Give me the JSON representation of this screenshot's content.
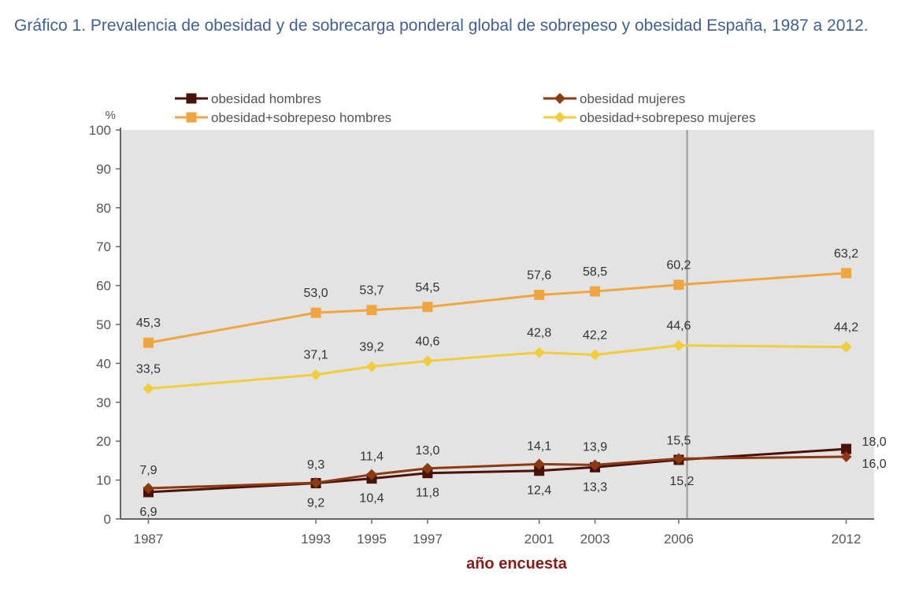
{
  "caption": "Gráfico 1. Prevalencia de obesidad y de sobrecarga ponderal global de sobrepeso y obesidad España, 1987 a 2012.",
  "chart_data": {
    "type": "line",
    "xlabel": "año encuesta",
    "ylabel": "%",
    "ylim": [
      0,
      100
    ],
    "yticks": [
      0,
      10,
      20,
      30,
      40,
      50,
      60,
      70,
      80,
      90,
      100
    ],
    "x": [
      1987,
      1993,
      1995,
      1997,
      2001,
      2003,
      2006,
      2012
    ],
    "xlim": [
      1986,
      2013
    ],
    "reference_line_x": 2006.3,
    "legend_position": "top",
    "grid": false,
    "series": [
      {
        "name": "obesidad hombres",
        "marker": "square",
        "color": "#4a120a",
        "values": [
          6.9,
          9.2,
          10.4,
          11.8,
          12.4,
          13.3,
          15.2,
          18.0
        ],
        "labels": [
          "6,9",
          "9,2",
          "10,4",
          "11,8",
          "12,4",
          "13,3",
          "15,2",
          "18,0"
        ]
      },
      {
        "name": "obesidad mujeres",
        "marker": "diamond",
        "color": "#8b3a12",
        "values": [
          7.9,
          9.3,
          11.4,
          13.0,
          14.1,
          13.9,
          15.5,
          16.0
        ],
        "labels": [
          "7,9",
          "9,3",
          "11,4",
          "13,0",
          "14,1",
          "13,9",
          "15,5",
          "16,0"
        ]
      },
      {
        "name": "obesidad+sobrepeso hombres",
        "marker": "square",
        "color": "#f0a640",
        "values": [
          45.3,
          53.0,
          53.7,
          54.5,
          57.6,
          58.5,
          60.2,
          63.2
        ],
        "labels": [
          "45,3",
          "53,0",
          "53,7",
          "54,5",
          "57,6",
          "58,5",
          "60,2",
          "63,2"
        ]
      },
      {
        "name": "obesidad+sobrepeso mujeres",
        "marker": "diamond",
        "color": "#f2cc3a",
        "values": [
          33.5,
          37.1,
          39.2,
          40.6,
          42.8,
          42.2,
          44.6,
          44.2
        ],
        "labels": [
          "33,5",
          "37,1",
          "39,2",
          "40,6",
          "42,8",
          "42,2",
          "44,6",
          "44,2"
        ]
      }
    ]
  }
}
